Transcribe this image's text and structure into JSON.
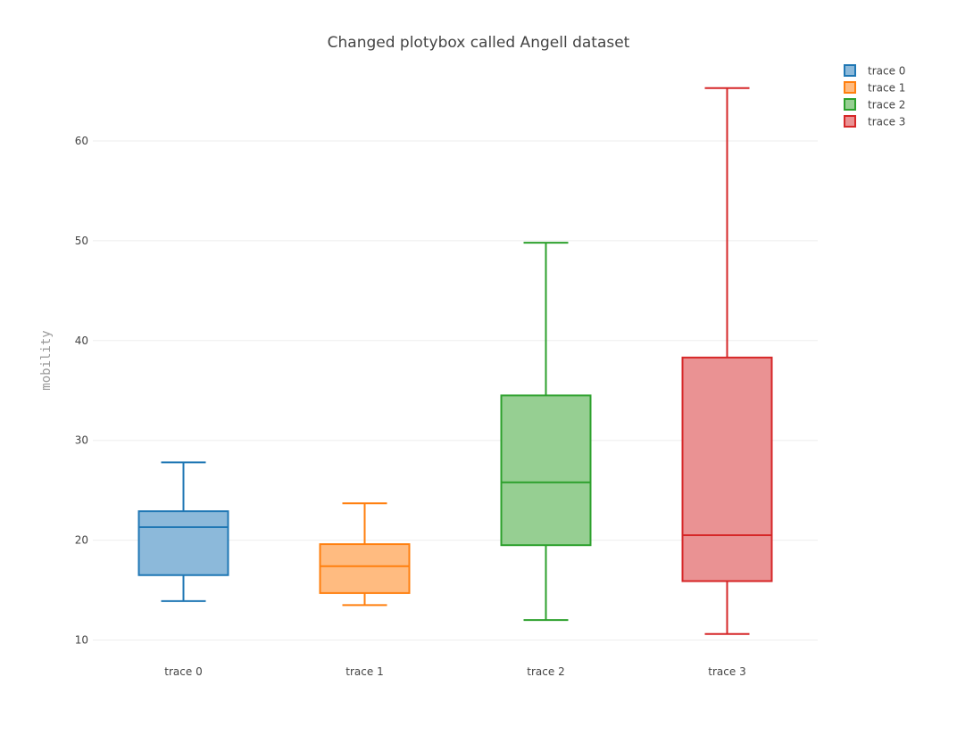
{
  "chart_data": {
    "type": "box",
    "title": "Changed plotybox called Angell dataset",
    "xlabel": "",
    "ylabel": "mobility",
    "ylim": [
      8,
      68
    ],
    "yticks": [
      10,
      20,
      30,
      40,
      50,
      60
    ],
    "grid": true,
    "legend_position": "top-right",
    "categories": [
      "trace 0",
      "trace 1",
      "trace 2",
      "trace 3"
    ],
    "series": [
      {
        "name": "trace 0",
        "color": "#1f77b4",
        "fill": "#8cb9da",
        "min": 13.9,
        "q1": 16.5,
        "median": 21.3,
        "q3": 22.9,
        "max": 27.8
      },
      {
        "name": "trace 1",
        "color": "#ff7f0e",
        "fill": "#ffbb80",
        "min": 13.5,
        "q1": 14.7,
        "median": 17.4,
        "q3": 19.6,
        "max": 23.7
      },
      {
        "name": "trace 2",
        "color": "#2ca02c",
        "fill": "#96cf92",
        "min": 12.0,
        "q1": 19.5,
        "median": 25.8,
        "q3": 34.5,
        "max": 49.8
      },
      {
        "name": "trace 3",
        "color": "#d62728",
        "fill": "#ea9293",
        "min": 10.6,
        "q1": 15.9,
        "median": 20.5,
        "q3": 38.3,
        "max": 65.3
      }
    ]
  }
}
